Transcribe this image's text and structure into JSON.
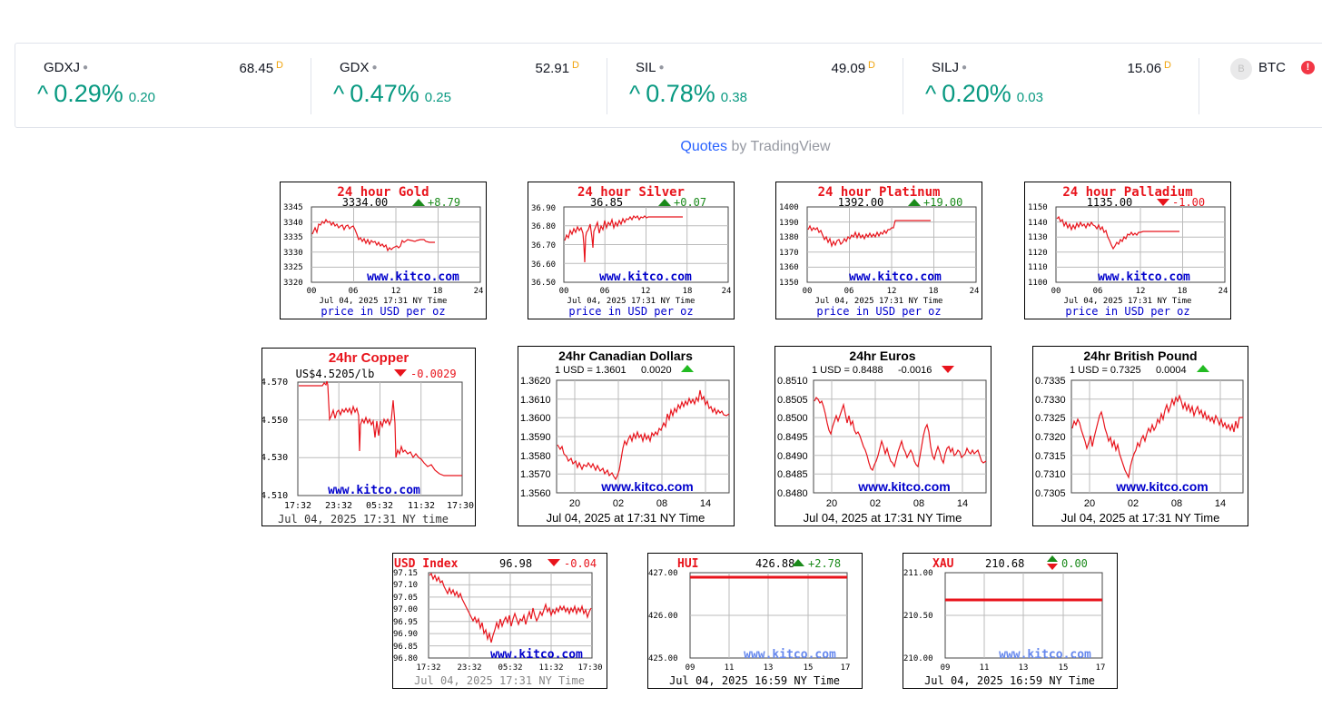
{
  "ticker": {
    "items": [
      {
        "symbol": "GDXJ",
        "price": "68.45",
        "badge": "D",
        "change_pct": "0.29%",
        "change_abs": "0.20"
      },
      {
        "symbol": "GDX",
        "price": "52.91",
        "badge": "D",
        "change_pct": "0.47%",
        "change_abs": "0.25"
      },
      {
        "symbol": "SIL",
        "price": "49.09",
        "badge": "D",
        "change_pct": "0.78%",
        "change_abs": "0.38"
      },
      {
        "symbol": "SILJ",
        "price": "15.06",
        "badge": "D",
        "change_pct": "0.20%",
        "change_abs": "0.03"
      }
    ],
    "btc": {
      "logo": "B",
      "symbol": "BTC",
      "warn": "!"
    },
    "up_arrow": "^",
    "dot": "●"
  },
  "attribution": {
    "link": "Quotes",
    "text": " by TradingView"
  },
  "charts": {
    "gold": {
      "title": "24 hour Gold",
      "price": "3334.00",
      "change": "+8.79",
      "watermark": "www.kitco.com",
      "date": "Jul 04, 2025 17:31 NY Time",
      "footer": "price in USD per oz",
      "yticks": [
        "3345",
        "3340",
        "3335",
        "3330",
        "3325",
        "3320"
      ],
      "xticks": [
        "00",
        "06",
        "12",
        "18",
        "24"
      ]
    },
    "silver": {
      "title": "24 hour Silver",
      "price": "36.85",
      "change": "+0.07",
      "watermark": "www.kitco.com",
      "date": "Jul 04, 2025 17:31 NY Time",
      "footer": "price in USD per oz",
      "yticks": [
        "36.90",
        "36.80",
        "36.70",
        "36.60",
        "36.50"
      ],
      "xticks": [
        "00",
        "06",
        "12",
        "18",
        "24"
      ]
    },
    "platinum": {
      "title": "24 hour Platinum",
      "price": "1392.00",
      "change": "+19.00",
      "watermark": "www.kitco.com",
      "date": "Jul 04, 2025 17:31 NY Time",
      "footer": "price in USD per oz",
      "yticks": [
        "1400",
        "1390",
        "1380",
        "1370",
        "1360",
        "1350"
      ],
      "xticks": [
        "00",
        "06",
        "12",
        "18",
        "24"
      ]
    },
    "palladium": {
      "title": "24 hour Palladium",
      "price": "1135.00",
      "change": "-1.00",
      "watermark": "www.kitco.com",
      "date": "Jul 04, 2025 17:31 NY Time",
      "footer": "price in USD per oz",
      "yticks": [
        "1150",
        "1140",
        "1130",
        "1120",
        "1110",
        "1100"
      ],
      "xticks": [
        "00",
        "06",
        "12",
        "18",
        "24"
      ]
    },
    "copper": {
      "title": "24hr Copper",
      "price": "US$4.5205/lb",
      "change": "-0.0029",
      "watermark": "www.kitco.com",
      "date": "Jul 04, 2025 17:31 NY time",
      "yticks": [
        "4.570",
        "4.550",
        "4.530",
        "4.510"
      ],
      "xticks": [
        "17:32",
        "23:32",
        "05:32",
        "11:32",
        "17:30"
      ]
    },
    "cad": {
      "title": "24hr Canadian Dollars",
      "rate": "1 USD = 1.3601",
      "change": "0.0020",
      "watermark": "www.kitco.com",
      "date": "Jul 04, 2025 at 17:31 NY Time",
      "yticks": [
        "1.3620",
        "1.3610",
        "1.3600",
        "1.3590",
        "1.3580",
        "1.3570",
        "1.3560"
      ],
      "xticks": [
        "20",
        "02",
        "08",
        "14"
      ]
    },
    "eur": {
      "title": "24hr Euros",
      "rate": "1 USD = 0.8488",
      "change": "-0.0016",
      "watermark": "www.kitco.com",
      "date": "Jul 04, 2025 at 17:31 NY Time",
      "yticks": [
        "0.8510",
        "0.8505",
        "0.8500",
        "0.8495",
        "0.8490",
        "0.8485",
        "0.8480"
      ],
      "xticks": [
        "20",
        "02",
        "08",
        "14"
      ]
    },
    "gbp": {
      "title": "24hr British Pound",
      "rate": "1 USD = 0.7325",
      "change": "0.0004",
      "watermark": "www.kitco.com",
      "date": "Jul 04, 2025 at 17:31 NY Time",
      "yticks": [
        "0.7335",
        "0.7330",
        "0.7325",
        "0.7320",
        "0.7315",
        "0.7310",
        "0.7305"
      ],
      "xticks": [
        "20",
        "02",
        "08",
        "14"
      ]
    },
    "usd": {
      "title": "USD Index",
      "price": "96.98",
      "change": "-0.04",
      "watermark": "www.kitco.com",
      "date": "Jul 04, 2025 17:31 NY Time",
      "yticks": [
        "97.15",
        "97.10",
        "97.05",
        "97.00",
        "96.95",
        "96.90",
        "96.85",
        "96.80"
      ],
      "xticks": [
        "17:32",
        "23:32",
        "05:32",
        "11:32",
        "17:30"
      ]
    },
    "hui": {
      "title": "HUI",
      "price": "426.88",
      "change": "+2.78",
      "watermark": "www.kitco.com",
      "date": "Jul 04, 2025 16:59 NY Time",
      "yticks": [
        "427.00",
        "426.00",
        "425.00"
      ],
      "xticks": [
        "09",
        "11",
        "13",
        "15",
        "17"
      ]
    },
    "xau": {
      "title": "XAU",
      "price": "210.68",
      "change": "0.00",
      "watermark": "www.kitco.com",
      "date": "Jul 04, 2025 16:59 NY Time",
      "yticks": [
        "211.00",
        "210.50",
        "210.00"
      ],
      "xticks": [
        "09",
        "11",
        "13",
        "15",
        "17"
      ]
    }
  },
  "colors": {
    "up_green": "#089981",
    "title_red": "#e8141c",
    "line_red": "#e8141c",
    "watermark_blue": "#0000cc",
    "link_blue": "#2962ff",
    "badge_orange": "#f0a30a"
  }
}
